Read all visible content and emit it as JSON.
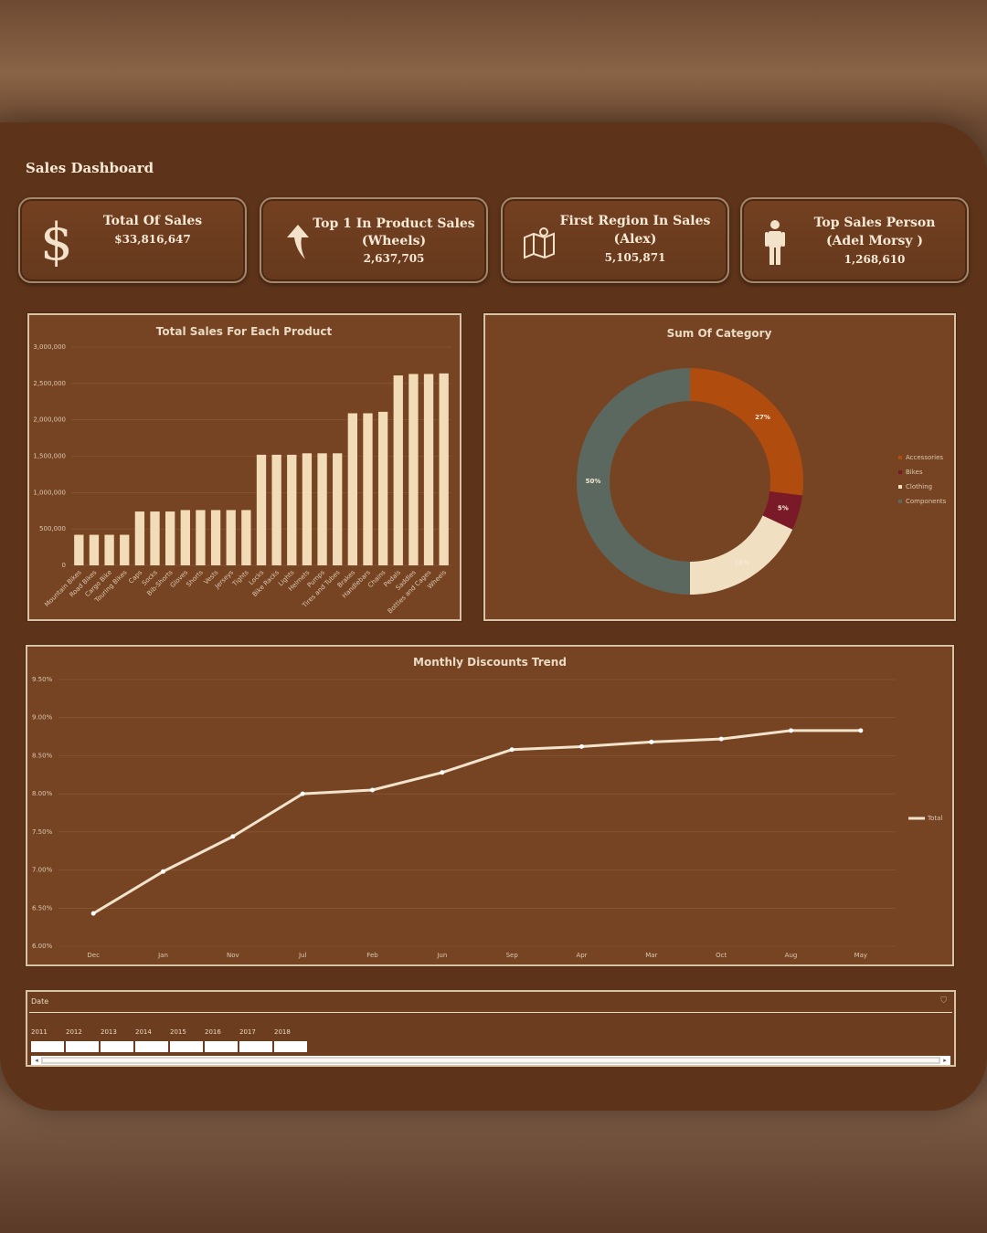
{
  "dashboard": {
    "title": "Sales Dashboard"
  },
  "kpis": [
    {
      "label1": "Total Of Sales",
      "label2": "",
      "value": "$33,816,647",
      "icon": "dollar-icon"
    },
    {
      "label1": "Top 1 In Product Sales",
      "label2": "(Wheels)",
      "value": "2,637,705",
      "icon": "up-arrow-icon"
    },
    {
      "label1": "First Region In Sales",
      "label2": "(Alex)",
      "value": "5,105,871",
      "icon": "map-icon"
    },
    {
      "label1": "Top Sales Person",
      "label2": "(Adel Morsy )",
      "value": "1,268,610",
      "icon": "person-icon"
    }
  ],
  "chart_data": [
    {
      "type": "bar",
      "title": "Total Sales For Each Product",
      "categories": [
        "Mountain Bikes",
        "Road Bikes",
        "Cargo Bike",
        "Touring Bikes",
        "Caps",
        "Socks",
        "Bib-Shorts",
        "Gloves",
        "Shorts",
        "Vests",
        "Jerseys",
        "Tights",
        "Locks",
        "Bike Racks",
        "Lights",
        "Helmets",
        "Pumps",
        "Tires and Tubes",
        "Brakes",
        "Handlebars",
        "Chains",
        "Pedals",
        "Saddles",
        "Bottles and Cages",
        "Wheels"
      ],
      "values": [
        420000,
        420000,
        420000,
        420000,
        740000,
        740000,
        740000,
        760000,
        760000,
        760000,
        760000,
        760000,
        1520000,
        1520000,
        1520000,
        1540000,
        1540000,
        1540000,
        2090000,
        2090000,
        2110000,
        2610000,
        2630000,
        2630000,
        2637705
      ],
      "ylim": [
        0,
        3000000
      ],
      "yticks": [
        "3,000,000",
        "2,500,000",
        "2,000,000",
        "1,500,000",
        "1,000,000",
        "500,000",
        "0"
      ],
      "grid": true,
      "colors": {
        "bar": "#f2dcb8"
      }
    },
    {
      "type": "pie",
      "title": "Sum Of Category",
      "labels": [
        "Accessories",
        "Bikes",
        "Clothing",
        "Components"
      ],
      "values": [
        27,
        5,
        18,
        50
      ],
      "data_labels": [
        "27%",
        "5%",
        "18%",
        "50%"
      ],
      "colors": [
        "#b04c0e",
        "#7a1a28",
        "#f1dfc2",
        "#5b6860"
      ],
      "legend": "right"
    },
    {
      "type": "line",
      "title": "Monthly Discounts Trend",
      "categories": [
        "Dec",
        "Jan",
        "Nov",
        "Jul",
        "Feb",
        "Jun",
        "Sep",
        "Apr",
        "Mar",
        "Oct",
        "Aug",
        "May"
      ],
      "series": [
        {
          "name": "Total",
          "values": [
            6.43,
            6.98,
            7.44,
            8.0,
            8.05,
            8.28,
            8.58,
            8.62,
            8.68,
            8.72,
            8.83,
            8.83
          ]
        }
      ],
      "ylim": [
        6.0,
        9.5
      ],
      "yticks": [
        "9.50%",
        "9.00%",
        "8.50%",
        "8.00%",
        "7.50%",
        "7.00%",
        "6.50%",
        "6.00%"
      ],
      "legend": "right",
      "colors": {
        "line": "#f2e4cc"
      }
    }
  ],
  "slicer": {
    "header": "Date",
    "years": [
      "2011",
      "2012",
      "2013",
      "2014",
      "2015",
      "2016",
      "2017",
      "2018"
    ]
  }
}
